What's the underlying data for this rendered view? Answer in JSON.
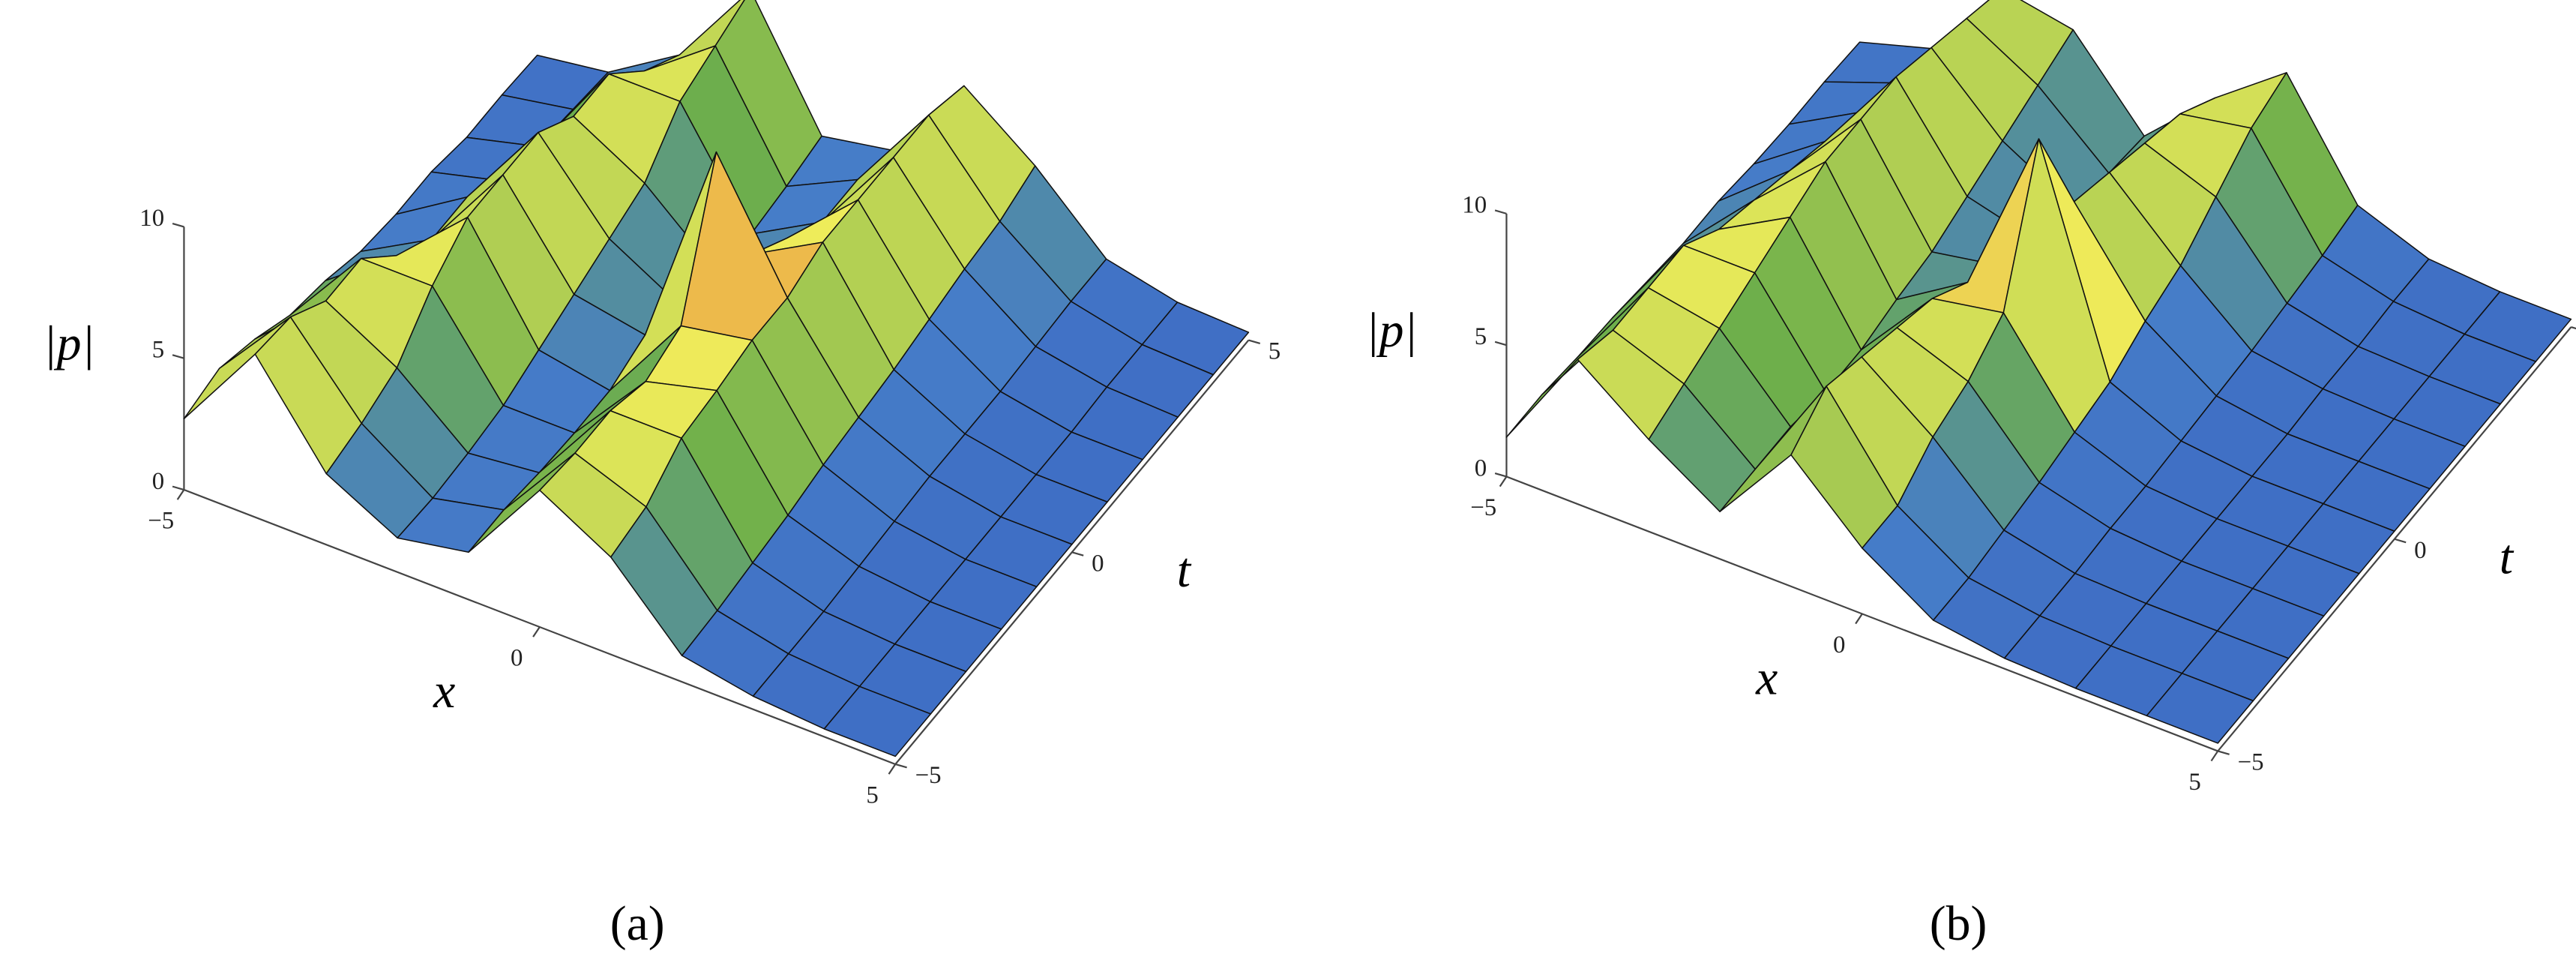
{
  "chart_data": [
    {
      "type": "surface",
      "label": "(a)",
      "xlabel": "x",
      "ylabel": "t",
      "zlabel": "|p|",
      "x": [
        -5,
        -4,
        -3,
        -2,
        -1,
        0,
        1,
        2,
        3,
        4,
        5
      ],
      "y": [
        -5,
        -4,
        -3,
        -2,
        -1,
        0,
        1,
        2,
        3,
        4,
        5
      ],
      "z": [
        [
          2.7,
          6.2,
          2.7,
          1.3,
          1.8,
          5.2,
          3.7,
          1.0,
          0.5,
          0.3,
          0.3
        ],
        [
          3.0,
          6.0,
          3.0,
          1.2,
          1.8,
          5.0,
          4.0,
          1.1,
          0.5,
          0.3,
          0.3
        ],
        [
          2.5,
          5.0,
          3.5,
          1.3,
          1.6,
          5.0,
          5.0,
          1.3,
          0.5,
          0.3,
          0.3
        ],
        [
          1.8,
          5.0,
          5.0,
          1.5,
          1.5,
          4.5,
          5.2,
          1.5,
          0.6,
          0.3,
          0.3
        ],
        [
          1.5,
          3.5,
          6.0,
          2.0,
          1.5,
          5.0,
          5.5,
          1.8,
          0.7,
          0.3,
          0.3
        ],
        [
          1.0,
          2.5,
          6.0,
          2.5,
          2.0,
          10.0,
          5.5,
          2.0,
          0.8,
          0.3,
          0.3
        ],
        [
          0.8,
          2.5,
          6.0,
          3.0,
          1.5,
          4.5,
          6.0,
          2.2,
          0.8,
          0.3,
          0.3
        ],
        [
          0.8,
          1.5,
          5.0,
          3.5,
          1.2,
          3.5,
          6.0,
          2.5,
          0.8,
          0.3,
          0.3
        ],
        [
          0.5,
          1.2,
          5.0,
          5.0,
          1.0,
          2.5,
          6.0,
          2.8,
          0.9,
          0.4,
          0.3
        ],
        [
          0.5,
          1.0,
          3.5,
          5.5,
          1.2,
          2.5,
          6.0,
          3.0,
          1.0,
          0.4,
          0.3
        ],
        [
          0.4,
          0.8,
          2.5,
          6.0,
          1.5,
          2.0,
          5.5,
          3.5,
          1.0,
          0.4,
          0.3
        ]
      ],
      "xlim": [
        -5,
        5
      ],
      "ylim": [
        -5,
        5
      ],
      "zlim": [
        0,
        10
      ],
      "xticks": [
        {
          "value": -5,
          "label": "−5"
        },
        0,
        5
      ],
      "yticks": [
        {
          "value": -5,
          "label": "−5"
        },
        0,
        5
      ],
      "zticks": [
        0,
        5,
        10
      ]
    },
    {
      "type": "surface",
      "label": "(b)",
      "xlabel": "x",
      "ylabel": "t",
      "zlabel": "|p|",
      "x": [
        -5,
        -4,
        -3,
        -2,
        -1,
        0,
        1,
        2,
        3,
        4,
        5
      ],
      "y": [
        -5,
        -4,
        -3,
        -2,
        -1,
        0,
        1,
        2,
        3,
        4,
        5
      ],
      "z": [
        [
          1.5,
          5.5,
          3.5,
          1.8,
          5.0,
          2.5,
          0.8,
          0.4,
          0.3,
          0.3,
          0.3
        ],
        [
          1.5,
          5.0,
          4.0,
          1.8,
          6.0,
          2.5,
          0.8,
          0.4,
          0.3,
          0.3,
          0.3
        ],
        [
          1.3,
          5.0,
          4.5,
          1.8,
          5.5,
          3.5,
          1.0,
          0.4,
          0.3,
          0.3,
          0.3
        ],
        [
          1.2,
          5.0,
          5.0,
          1.5,
          5.0,
          4.0,
          1.2,
          0.5,
          0.3,
          0.3,
          0.3
        ],
        [
          1.0,
          4.0,
          5.5,
          1.5,
          4.5,
          5.0,
          1.5,
          0.5,
          0.3,
          0.3,
          0.3
        ],
        [
          0.8,
          3.5,
          6.0,
          1.8,
          3.5,
          10.0,
          1.8,
          0.6,
          0.3,
          0.3,
          0.3
        ],
        [
          0.8,
          3.0,
          6.0,
          2.0,
          2.5,
          6.0,
          2.5,
          0.7,
          0.3,
          0.3,
          0.3
        ],
        [
          0.6,
          2.5,
          6.0,
          2.5,
          1.8,
          5.5,
          3.0,
          0.8,
          0.4,
          0.3,
          0.3
        ],
        [
          0.5,
          2.0,
          5.5,
          3.0,
          1.5,
          5.0,
          4.0,
          1.0,
          0.4,
          0.3,
          0.3
        ],
        [
          0.5,
          1.5,
          5.0,
          3.5,
          1.2,
          4.5,
          5.0,
          1.2,
          0.5,
          0.3,
          0.3
        ],
        [
          0.4,
          1.2,
          4.5,
          4.0,
          1.0,
          3.5,
          5.5,
          1.5,
          0.5,
          0.3,
          0.3
        ]
      ],
      "xlim": [
        -5,
        5
      ],
      "ylim": [
        -5,
        5
      ],
      "zlim": [
        0,
        10
      ],
      "xticks": [
        {
          "value": -5,
          "label": "−5"
        },
        0,
        5
      ],
      "yticks": [
        {
          "value": -5,
          "label": "−5"
        },
        0,
        5
      ],
      "zticks": [
        0,
        5,
        10
      ]
    }
  ]
}
